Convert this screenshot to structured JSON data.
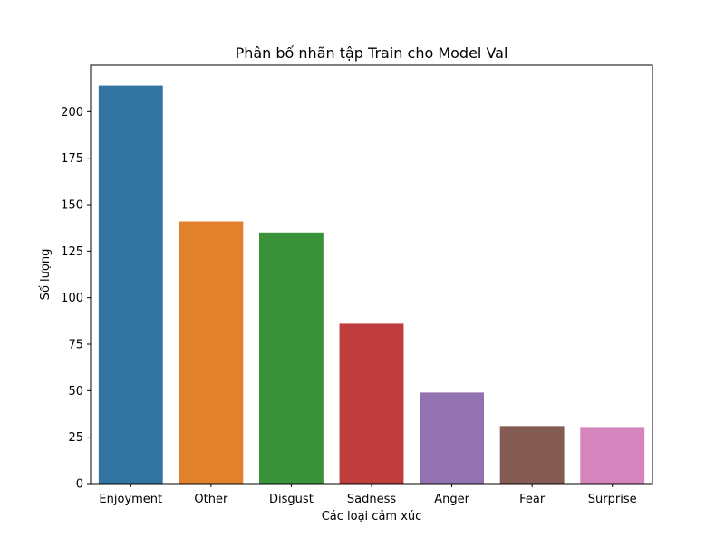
{
  "chart_data": {
    "type": "bar",
    "title": "Phân bố nhãn tập Train cho Model Val",
    "xlabel": "Các loại cảm xúc",
    "ylabel": "Số lượng",
    "categories": [
      "Enjoyment",
      "Other",
      "Disgust",
      "Sadness",
      "Anger",
      "Fear",
      "Surprise"
    ],
    "values": [
      214,
      141,
      135,
      86,
      49,
      31,
      30
    ],
    "colors": [
      "#3274a1",
      "#e1812c",
      "#3a923a",
      "#c03d3e",
      "#9372b2",
      "#845b53",
      "#d684bd"
    ],
    "ylim": [
      0,
      225
    ],
    "yticks": [
      0,
      25,
      50,
      75,
      100,
      125,
      150,
      175,
      200
    ],
    "grid": false,
    "legend": "none"
  }
}
